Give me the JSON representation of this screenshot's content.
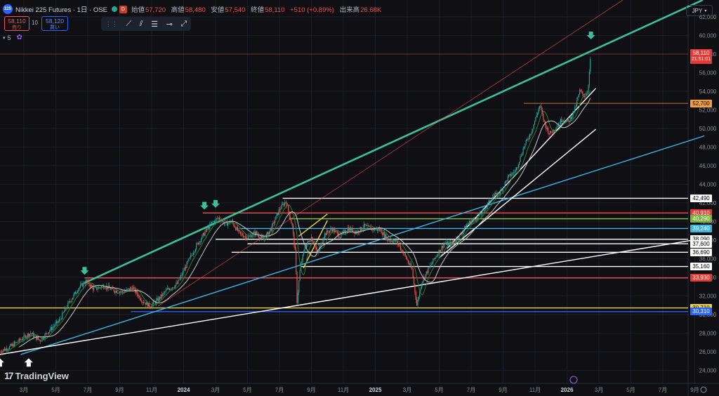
{
  "header": {
    "logo_text": "225",
    "symbol": "Nikkei 225 Futures · 1日 · OSE",
    "badge": "D",
    "ohlc": [
      {
        "k": "始値",
        "v": "57,720"
      },
      {
        "k": "高値",
        "v": "58,480"
      },
      {
        "k": "安値",
        "v": "57,540"
      },
      {
        "k": "終値",
        "v": "58,110"
      },
      {
        "k": "",
        "v": "+510 (+0.89%)"
      },
      {
        "k": "出来高",
        "v": "26.68K"
      }
    ]
  },
  "order": {
    "sell_price": "58,110",
    "sell_label": "売り",
    "qty": "10",
    "buy_price": "58,120",
    "buy_label": "買い"
  },
  "indicators_count": "5",
  "currency": "JPY",
  "branding": "TradingView",
  "colors": {
    "background": "#0f0f14",
    "teal": "#3dbf9a",
    "cyan": "#3fb4e0",
    "red": "#ef5350",
    "yellow": "#e8d44d",
    "green": "#8bc34a",
    "orange": "#f0a040",
    "white": "#ffffff",
    "blue": "#2962ff"
  },
  "chart_data": {
    "type": "candlestick",
    "y_ticks": [
      24000,
      26000,
      28000,
      30000,
      32000,
      34000,
      36000,
      38000,
      40000,
      42000,
      44000,
      46000,
      48000,
      50000,
      52000,
      54000,
      56000,
      58000,
      60000,
      62000
    ],
    "y_tick_labels": [
      "24,000",
      "26,000",
      "28,000",
      "30,000",
      "32,000",
      "34,000",
      "36,000",
      "38,000",
      "40,000",
      "42,000",
      "44,000",
      "46,000",
      "48,000",
      "50,000",
      "52,000",
      "54,000",
      "56,000",
      "58,000",
      "60,000",
      "62,000"
    ],
    "ylim": [
      22600,
      63800
    ],
    "x_ticks": [
      {
        "label": "3月",
        "t": 2
      },
      {
        "label": "5月",
        "t": 4
      },
      {
        "label": "7月",
        "t": 6
      },
      {
        "label": "9月",
        "t": 8
      },
      {
        "label": "11月",
        "t": 10
      },
      {
        "label": "2024",
        "t": 12
      },
      {
        "label": "3月",
        "t": 14
      },
      {
        "label": "5月",
        "t": 16
      },
      {
        "label": "7月",
        "t": 18
      },
      {
        "label": "9月",
        "t": 20
      },
      {
        "label": "11月",
        "t": 22
      },
      {
        "label": "2025",
        "t": 24
      },
      {
        "label": "3月",
        "t": 26
      },
      {
        "label": "5月",
        "t": 28
      },
      {
        "label": "7月",
        "t": 30
      },
      {
        "label": "9月",
        "t": 32
      },
      {
        "label": "11月",
        "t": 34
      },
      {
        "label": "2026",
        "t": 36
      },
      {
        "label": "3月",
        "t": 38
      },
      {
        "label": "5月",
        "t": 40
      },
      {
        "label": "7月",
        "t": 42
      },
      {
        "label": "9月",
        "t": 44
      }
    ],
    "xlim": [
      0.55,
      45.5
    ],
    "price_path": [
      [
        0.5,
        26000
      ],
      [
        1.2,
        26600
      ],
      [
        1.8,
        27300
      ],
      [
        2.4,
        28000
      ],
      [
        3.0,
        27200
      ],
      [
        3.6,
        28300
      ],
      [
        4.2,
        29300
      ],
      [
        4.8,
        31200
      ],
      [
        5.4,
        32800
      ],
      [
        5.9,
        33600
      ],
      [
        6.4,
        32700
      ],
      [
        7.0,
        33100
      ],
      [
        7.6,
        32600
      ],
      [
        8.2,
        32400
      ],
      [
        8.8,
        32900
      ],
      [
        9.4,
        31500
      ],
      [
        9.9,
        30900
      ],
      [
        10.4,
        31600
      ],
      [
        11.0,
        32700
      ],
      [
        11.6,
        33300
      ],
      [
        12.2,
        35400
      ],
      [
        12.8,
        37400
      ],
      [
        13.4,
        39000
      ],
      [
        13.8,
        39900
      ],
      [
        14.2,
        40400
      ],
      [
        14.6,
        39700
      ],
      [
        15.0,
        40000
      ],
      [
        15.5,
        38700
      ],
      [
        16.0,
        38300
      ],
      [
        16.5,
        38800
      ],
      [
        17.0,
        38000
      ],
      [
        17.5,
        39300
      ],
      [
        18.0,
        41300
      ],
      [
        18.4,
        42200
      ],
      [
        18.8,
        39500
      ],
      [
        19.0,
        36400
      ],
      [
        19.1,
        31400
      ],
      [
        19.3,
        35000
      ],
      [
        19.6,
        37300
      ],
      [
        20.0,
        38300
      ],
      [
        20.4,
        36500
      ],
      [
        20.8,
        38600
      ],
      [
        21.3,
        39200
      ],
      [
        21.8,
        38400
      ],
      [
        22.3,
        39300
      ],
      [
        22.8,
        38800
      ],
      [
        23.3,
        39500
      ],
      [
        23.8,
        39200
      ],
      [
        24.3,
        39100
      ],
      [
        24.8,
        38000
      ],
      [
        25.3,
        37900
      ],
      [
        25.8,
        36500
      ],
      [
        26.3,
        34800
      ],
      [
        26.6,
        31000
      ],
      [
        26.9,
        33500
      ],
      [
        27.3,
        34800
      ],
      [
        27.8,
        36300
      ],
      [
        28.3,
        37600
      ],
      [
        28.8,
        37600
      ],
      [
        29.3,
        38500
      ],
      [
        29.8,
        39800
      ],
      [
        30.3,
        40300
      ],
      [
        30.8,
        41200
      ],
      [
        31.3,
        42600
      ],
      [
        31.8,
        43100
      ],
      [
        32.3,
        44700
      ],
      [
        32.8,
        45500
      ],
      [
        33.3,
        48000
      ],
      [
        33.8,
        49800
      ],
      [
        34.3,
        52500
      ],
      [
        34.6,
        50500
      ],
      [
        34.9,
        49400
      ],
      [
        35.3,
        50100
      ],
      [
        35.7,
        51000
      ],
      [
        36.1,
        50700
      ],
      [
        36.5,
        52100
      ],
      [
        36.8,
        54000
      ],
      [
        37.1,
        53500
      ],
      [
        37.3,
        54000
      ],
      [
        37.5,
        58110
      ]
    ],
    "trendlines": [
      {
        "color": "teal",
        "p1": [
          5.8,
          33400
        ],
        "p2": [
          44.5,
          63800
        ]
      },
      {
        "color": "cyan",
        "p1": [
          1.8,
          25700
        ],
        "p2": [
          44.6,
          49200
        ]
      },
      {
        "color": "white",
        "p1": [
          0.5,
          25700
        ],
        "p2": [
          44.6,
          38200
        ]
      },
      {
        "color": "red",
        "p1": [
          10.4,
          30900
        ],
        "p2": [
          39.5,
          63800
        ]
      },
      {
        "color": "white",
        "p1": [
          28.0,
          36100
        ],
        "p2": [
          37.8,
          49900
        ]
      },
      {
        "color": "white",
        "p1": [
          28.5,
          37100
        ],
        "p2": [
          37.8,
          54300
        ]
      },
      {
        "color": "yellow",
        "p1": [
          19.5,
          35000
        ],
        "p2": [
          21.0,
          40100
        ]
      },
      {
        "color": "yellow",
        "p1": [
          19.2,
          38400
        ],
        "p2": [
          21.0,
          40800
        ]
      }
    ],
    "levels": [
      {
        "price": 42490,
        "label": "42,490",
        "color": "white",
        "from": 18.2
      },
      {
        "price": 40910,
        "label": "40,910",
        "color": "red",
        "from": 13.2
      },
      {
        "price": 40290,
        "label": "40,290",
        "color": "green",
        "from": 18.6
      },
      {
        "price": 39240,
        "label": "39,240",
        "color": "cyan",
        "from": 15.5
      },
      {
        "price": 38090,
        "label": "38,090",
        "color": "white",
        "from": 14.0
      },
      {
        "price": 37600,
        "label": "37,600",
        "color": "white",
        "from": 16.0
      },
      {
        "price": 36690,
        "label": "36,690",
        "color": "white",
        "from": 15.0
      },
      {
        "price": 35160,
        "label": "35,160",
        "color": "white",
        "from": 19.3
      },
      {
        "price": 33930,
        "label": "33,930",
        "color": "red",
        "from": 5.8
      },
      {
        "price": 30710,
        "label": "30,710",
        "color": "yellow",
        "from": 0.5
      },
      {
        "price": 30310,
        "label": "30,310",
        "color": "blue",
        "from": 8.7
      }
    ],
    "current_price": {
      "label": "58,110",
      "countdown": "21:51:01"
    },
    "marked_level": {
      "price": 52700,
      "label": "52,700",
      "from": 33.3
    },
    "arrows_down": [
      [
        5.8,
        34500
      ],
      [
        13.3,
        41500
      ],
      [
        14.0,
        41700
      ],
      [
        37.5,
        59800
      ]
    ],
    "arrows_up": [
      [
        2.3,
        25300
      ],
      [
        0.5,
        25300
      ]
    ]
  }
}
